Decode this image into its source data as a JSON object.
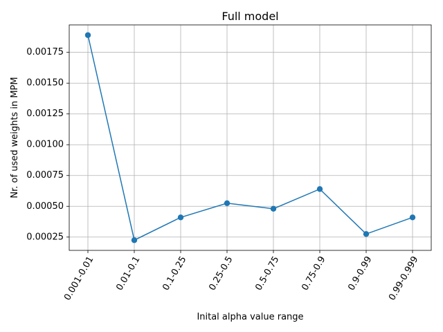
{
  "chart_data": {
    "type": "line",
    "title": "Full model",
    "xlabel": "Inital alpha value range",
    "ylabel": "Nr. of used weights in MPM",
    "categories": [
      "0.001-0.01",
      "0.01-0.1",
      "0.1-0.25",
      "0.25-0.5",
      "0.5-0.75",
      "0.75-0.9",
      "0.9-0.99",
      "0.99-0.999"
    ],
    "series": [
      {
        "values": [
          0.00189,
          0.000225,
          0.00041,
          0.000525,
          0.00048,
          0.00064,
          0.000275,
          0.00041
        ],
        "color": "#1f77b4",
        "marker": "circle"
      }
    ],
    "yticks": [
      0.00025,
      0.0005,
      0.00075,
      0.001,
      0.00125,
      0.0015,
      0.00175
    ],
    "ytick_labels": [
      "0.00025",
      "0.00050",
      "0.00075",
      "0.00100",
      "0.00125",
      "0.00150",
      "0.00175"
    ],
    "ylim": [
      0.000142,
      0.001973
    ],
    "grid": true,
    "xtick_rotation": 60
  }
}
